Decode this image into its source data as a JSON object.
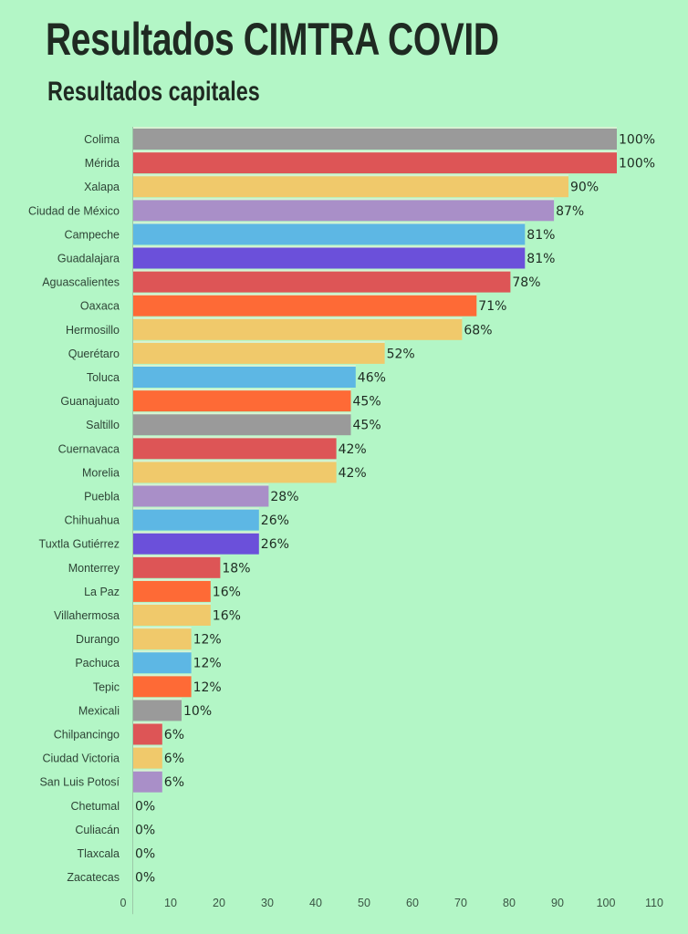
{
  "header": {
    "title": "Resultados CIMTRA COVID",
    "subtitle": "Resultados capitales"
  },
  "palette": {
    "background": "#b3f6c6",
    "gray": "#9a9a9a",
    "red": "#dd5556",
    "yellow": "#f0c96b",
    "lavender": "#a98fc8",
    "blue": "#5db7e4",
    "purple": "#6b50da",
    "orange": "#fe6a36",
    "axis": "#9cc9a8"
  },
  "chart_data": {
    "type": "bar",
    "orientation": "horizontal",
    "title": "Resultados capitales",
    "xlabel": "",
    "ylabel": "",
    "xlim": [
      0,
      110
    ],
    "x_ticks": [
      "0",
      "10",
      "20",
      "30",
      "40",
      "50",
      "60",
      "70",
      "80",
      "90",
      "100",
      "110"
    ],
    "grid": false,
    "legend": "none",
    "value_suffix": "%",
    "categories": [
      "Colima",
      "Mérida",
      "Xalapa",
      "Ciudad de México",
      "Campeche",
      "Guadalajara",
      "Aguascalientes",
      "Oaxaca",
      "Hermosillo",
      "Querétaro",
      "Toluca",
      "Guanajuato",
      "Saltillo",
      "Cuernavaca",
      "Morelia",
      "Puebla",
      "Chihuahua",
      "Tuxtla Gutiérrez",
      "Monterrey",
      "La Paz",
      "Villahermosa",
      "Durango",
      "Pachuca",
      "Tepic",
      "Mexicali",
      "Chilpancingo",
      "Ciudad Victoria",
      "San Luis Potosí",
      "Chetumal",
      "Culiacán",
      "Tlaxcala",
      "Zacatecas"
    ],
    "values": [
      100,
      100,
      90,
      87,
      81,
      81,
      78,
      71,
      68,
      52,
      46,
      45,
      45,
      42,
      42,
      28,
      26,
      26,
      18,
      16,
      16,
      12,
      12,
      12,
      10,
      6,
      6,
      6,
      0,
      0,
      0,
      0
    ],
    "value_labels": [
      "100%",
      "100%",
      "90%",
      "87%",
      "81%",
      "81%",
      "78%",
      "71%",
      "68%",
      "52%",
      "46%",
      "45%",
      "45%",
      "42%",
      "42%",
      "28%",
      "26%",
      "26%",
      "18%",
      "16%",
      "16%",
      "12%",
      "12%",
      "12%",
      "10%",
      "6%",
      "6%",
      "6%",
      "0%",
      "0%",
      "0%",
      "0%"
    ],
    "bar_colors": [
      "gray",
      "red",
      "yellow",
      "lavender",
      "blue",
      "purple",
      "red",
      "orange",
      "yellow",
      "yellow",
      "blue",
      "orange",
      "gray",
      "red",
      "yellow",
      "lavender",
      "blue",
      "purple",
      "red",
      "orange",
      "yellow",
      "yellow",
      "blue",
      "orange",
      "gray",
      "red",
      "yellow",
      "lavender",
      "gray",
      "gray",
      "gray",
      "gray"
    ]
  }
}
